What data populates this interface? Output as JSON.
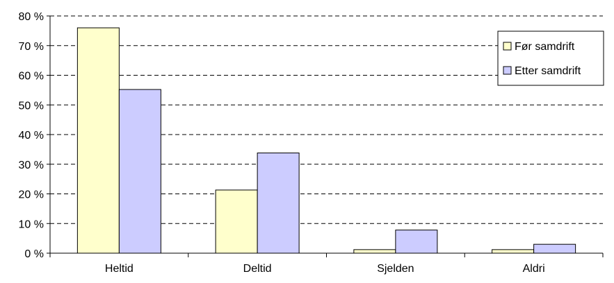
{
  "chart_data": {
    "type": "bar",
    "title": "",
    "xlabel": "",
    "ylabel": "",
    "categories": [
      "Heltid",
      "Deltid",
      "Sjelden",
      "Aldri"
    ],
    "series": [
      {
        "name": "Før samdrift",
        "values": [
          76,
          21.3,
          1.2,
          1.2
        ],
        "color": "#ffffcc"
      },
      {
        "name": "Etter samdrift",
        "values": [
          55.2,
          33.8,
          7.8,
          3.0
        ],
        "color": "#ccccff"
      }
    ],
    "ylim": [
      0,
      80
    ],
    "yticks": [
      0,
      10,
      20,
      30,
      40,
      50,
      60,
      70,
      80
    ],
    "ytick_labels": [
      "0 %",
      "10 %",
      "20 %",
      "30 %",
      "40 %",
      "50 %",
      "60 %",
      "70 %",
      "80 %"
    ],
    "grid": true,
    "legend_position": "top-right"
  }
}
